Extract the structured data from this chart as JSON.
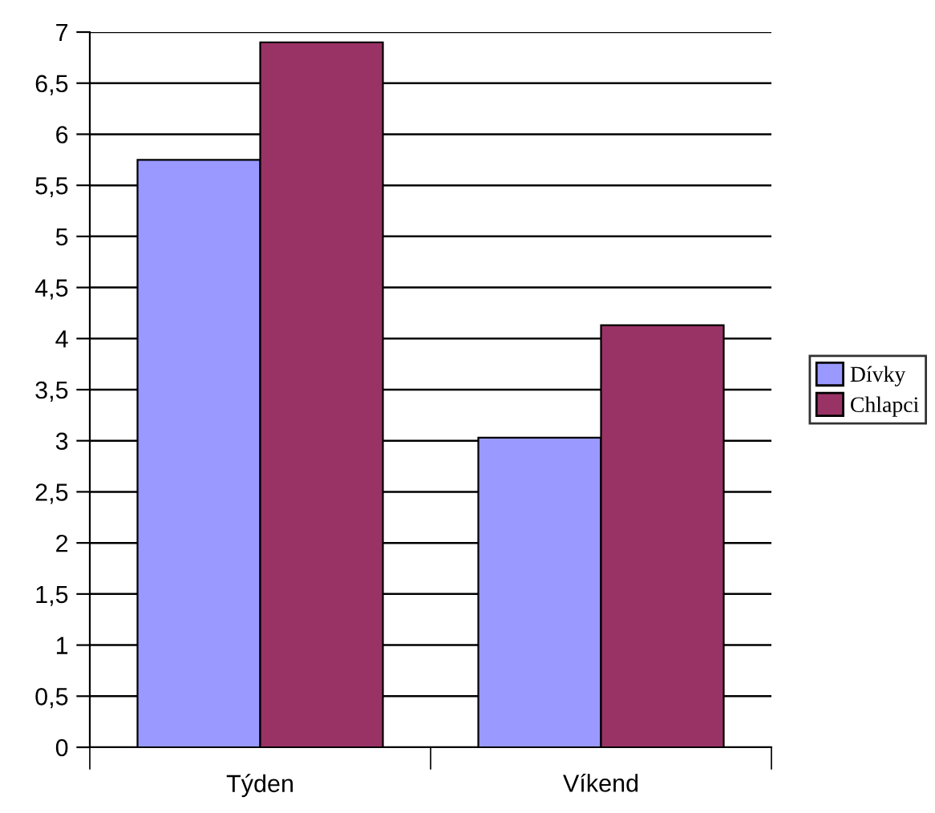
{
  "chart_data": {
    "type": "bar",
    "categories": [
      "Týden",
      "Víkend"
    ],
    "series": [
      {
        "name": "Dívky",
        "color": "#9999ff",
        "values": [
          5.75,
          3.03
        ]
      },
      {
        "name": "Chlapci",
        "color": "#993366",
        "values": [
          6.9,
          4.13
        ]
      }
    ],
    "ylim": [
      0,
      7
    ],
    "yticks": [
      0,
      {
        "value": 0.5,
        "label": "0,5"
      },
      1,
      {
        "value": 1.5,
        "label": "1,5"
      },
      2,
      {
        "value": 2.5,
        "label": "2,5"
      },
      3,
      {
        "value": 3.5,
        "label": "3,5"
      },
      4,
      {
        "value": 4.5,
        "label": "4,5"
      },
      5,
      {
        "value": 5.5,
        "label": "5,5"
      },
      6,
      {
        "value": 6.5,
        "label": "6,5"
      },
      7
    ],
    "grid": "y",
    "legend": "right"
  }
}
